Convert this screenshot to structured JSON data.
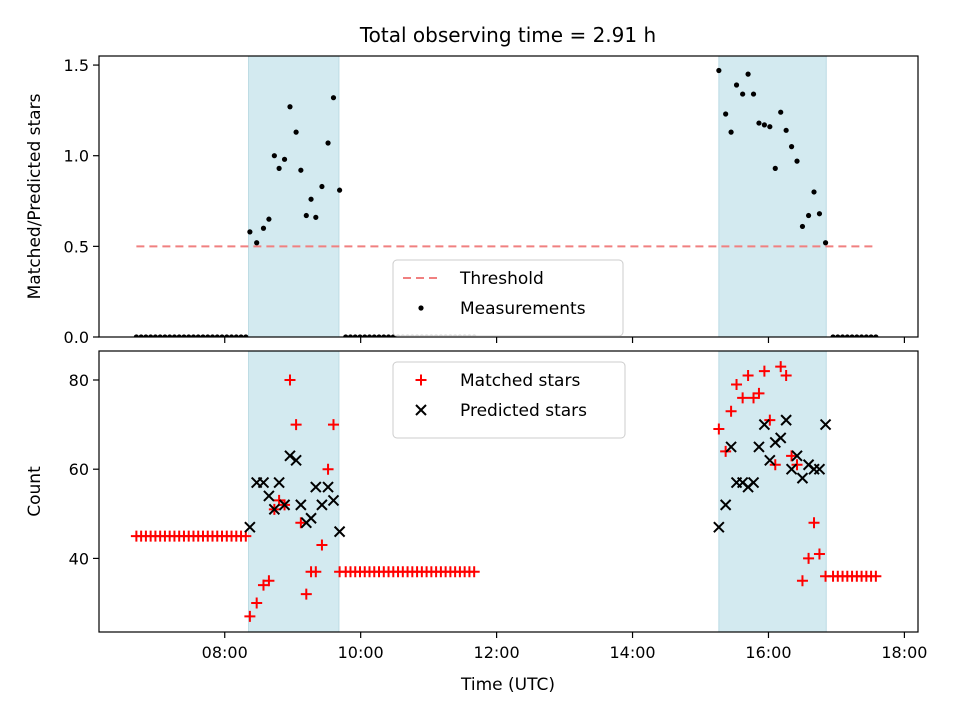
{
  "chart_data": {
    "title": "Total observing time = 2.91 h",
    "xlabel": "Time (UTC)",
    "x_unit": "hours UTC",
    "xlim": [
      6.15,
      18.2
    ],
    "xticks": [
      {
        "value": 8,
        "label": "08:00"
      },
      {
        "value": 10,
        "label": "10:00"
      },
      {
        "value": 12,
        "label": "12:00"
      },
      {
        "value": 14,
        "label": "14:00"
      },
      {
        "value": 16,
        "label": "16:00"
      },
      {
        "value": 18,
        "label": "18:00"
      }
    ],
    "shaded_intervals": [
      [
        8.35,
        9.68
      ],
      [
        15.27,
        16.85
      ]
    ],
    "shade_color": "#d3eaf0",
    "panels": [
      {
        "type": "scatter",
        "ylabel": "Matched/Predicted stars",
        "ylim": [
          0,
          1.55
        ],
        "yticks": [
          {
            "value": 0,
            "label": "0.0"
          },
          {
            "value": 0.5,
            "label": "0.5"
          },
          {
            "value": 1.0,
            "label": "1.0"
          },
          {
            "value": 1.5,
            "label": "1.5"
          }
        ],
        "legend": {
          "placement": "lower-center"
        },
        "threshold": {
          "name": "Threshold",
          "y": 0.5,
          "x_range": [
            6.7,
            17.6
          ],
          "color": "#f08080"
        },
        "series": [
          {
            "name": "Measurements",
            "marker": "dot",
            "color": "#000000",
            "points": [
              [
                6.7,
                0
              ],
              [
                6.77,
                0
              ],
              [
                6.84,
                0
              ],
              [
                6.91,
                0
              ],
              [
                6.98,
                0
              ],
              [
                7.05,
                0
              ],
              [
                7.12,
                0
              ],
              [
                7.19,
                0
              ],
              [
                7.26,
                0
              ],
              [
                7.33,
                0
              ],
              [
                7.4,
                0
              ],
              [
                7.47,
                0
              ],
              [
                7.54,
                0
              ],
              [
                7.61,
                0
              ],
              [
                7.68,
                0
              ],
              [
                7.75,
                0
              ],
              [
                7.82,
                0
              ],
              [
                7.89,
                0
              ],
              [
                7.96,
                0
              ],
              [
                8.03,
                0
              ],
              [
                8.1,
                0
              ],
              [
                8.17,
                0
              ],
              [
                8.24,
                0
              ],
              [
                8.31,
                0
              ],
              [
                8.37,
                0.58
              ],
              [
                8.47,
                0.52
              ],
              [
                8.57,
                0.6
              ],
              [
                8.65,
                0.65
              ],
              [
                8.73,
                1.0
              ],
              [
                8.8,
                0.93
              ],
              [
                8.88,
                0.98
              ],
              [
                8.96,
                1.27
              ],
              [
                9.05,
                1.13
              ],
              [
                9.12,
                0.92
              ],
              [
                9.2,
                0.67
              ],
              [
                9.27,
                0.76
              ],
              [
                9.34,
                0.66
              ],
              [
                9.43,
                0.83
              ],
              [
                9.52,
                1.07
              ],
              [
                9.6,
                1.32
              ],
              [
                9.69,
                0.81
              ],
              [
                9.78,
                0
              ],
              [
                9.85,
                0
              ],
              [
                9.92,
                0
              ],
              [
                9.99,
                0
              ],
              [
                10.06,
                0
              ],
              [
                10.13,
                0
              ],
              [
                10.2,
                0
              ],
              [
                10.27,
                0
              ],
              [
                10.34,
                0
              ],
              [
                10.41,
                0
              ],
              [
                10.48,
                0
              ],
              [
                10.55,
                0
              ],
              [
                10.62,
                0
              ],
              [
                10.69,
                0
              ],
              [
                10.76,
                0
              ],
              [
                10.83,
                0
              ],
              [
                10.9,
                0
              ],
              [
                10.97,
                0
              ],
              [
                11.04,
                0
              ],
              [
                11.11,
                0
              ],
              [
                11.18,
                0
              ],
              [
                11.25,
                0
              ],
              [
                11.32,
                0
              ],
              [
                11.39,
                0
              ],
              [
                11.46,
                0
              ],
              [
                11.53,
                0
              ],
              [
                11.6,
                0
              ],
              [
                11.67,
                0
              ],
              [
                15.27,
                1.47
              ],
              [
                15.37,
                1.23
              ],
              [
                15.45,
                1.13
              ],
              [
                15.53,
                1.39
              ],
              [
                15.62,
                1.34
              ],
              [
                15.7,
                1.45
              ],
              [
                15.78,
                1.34
              ],
              [
                15.86,
                1.18
              ],
              [
                15.94,
                1.17
              ],
              [
                16.02,
                1.16
              ],
              [
                16.1,
                0.93
              ],
              [
                16.18,
                1.24
              ],
              [
                16.26,
                1.14
              ],
              [
                16.34,
                1.05
              ],
              [
                16.42,
                0.97
              ],
              [
                16.5,
                0.61
              ],
              [
                16.59,
                0.67
              ],
              [
                16.67,
                0.8
              ],
              [
                16.75,
                0.68
              ],
              [
                16.84,
                0.52
              ],
              [
                16.95,
                0
              ],
              [
                17.02,
                0
              ],
              [
                17.09,
                0
              ],
              [
                17.16,
                0
              ],
              [
                17.23,
                0
              ],
              [
                17.3,
                0
              ],
              [
                17.37,
                0
              ],
              [
                17.44,
                0
              ],
              [
                17.51,
                0
              ],
              [
                17.58,
                0
              ]
            ]
          }
        ]
      },
      {
        "type": "scatter",
        "ylabel": "Count",
        "ylim": [
          23.5,
          86.5
        ],
        "yticks": [
          {
            "value": 40,
            "label": "40"
          },
          {
            "value": 60,
            "label": "60"
          },
          {
            "value": 80,
            "label": "80"
          }
        ],
        "legend": {
          "placement": "upper-center"
        },
        "series": [
          {
            "name": "Matched stars",
            "marker": "plus",
            "color": "#ff0000",
            "points": [
              [
                6.7,
                45
              ],
              [
                6.77,
                45
              ],
              [
                6.84,
                45
              ],
              [
                6.91,
                45
              ],
              [
                6.98,
                45
              ],
              [
                7.05,
                45
              ],
              [
                7.12,
                45
              ],
              [
                7.19,
                45
              ],
              [
                7.26,
                45
              ],
              [
                7.33,
                45
              ],
              [
                7.4,
                45
              ],
              [
                7.47,
                45
              ],
              [
                7.54,
                45
              ],
              [
                7.61,
                45
              ],
              [
                7.68,
                45
              ],
              [
                7.75,
                45
              ],
              [
                7.82,
                45
              ],
              [
                7.89,
                45
              ],
              [
                7.96,
                45
              ],
              [
                8.03,
                45
              ],
              [
                8.1,
                45
              ],
              [
                8.17,
                45
              ],
              [
                8.24,
                45
              ],
              [
                8.31,
                45
              ],
              [
                8.37,
                27
              ],
              [
                8.47,
                30
              ],
              [
                8.57,
                34
              ],
              [
                8.65,
                35
              ],
              [
                8.73,
                51
              ],
              [
                8.8,
                53
              ],
              [
                8.88,
                52
              ],
              [
                8.96,
                80
              ],
              [
                9.05,
                70
              ],
              [
                9.12,
                48
              ],
              [
                9.2,
                32
              ],
              [
                9.27,
                37
              ],
              [
                9.34,
                37
              ],
              [
                9.43,
                43
              ],
              [
                9.52,
                60
              ],
              [
                9.6,
                70
              ],
              [
                9.69,
                37
              ],
              [
                9.78,
                37
              ],
              [
                9.85,
                37
              ],
              [
                9.92,
                37
              ],
              [
                9.99,
                37
              ],
              [
                10.06,
                37
              ],
              [
                10.13,
                37
              ],
              [
                10.2,
                37
              ],
              [
                10.27,
                37
              ],
              [
                10.34,
                37
              ],
              [
                10.41,
                37
              ],
              [
                10.48,
                37
              ],
              [
                10.55,
                37
              ],
              [
                10.62,
                37
              ],
              [
                10.69,
                37
              ],
              [
                10.76,
                37
              ],
              [
                10.83,
                37
              ],
              [
                10.9,
                37
              ],
              [
                10.97,
                37
              ],
              [
                11.04,
                37
              ],
              [
                11.11,
                37
              ],
              [
                11.18,
                37
              ],
              [
                11.25,
                37
              ],
              [
                11.32,
                37
              ],
              [
                11.39,
                37
              ],
              [
                11.46,
                37
              ],
              [
                11.53,
                37
              ],
              [
                11.6,
                37
              ],
              [
                11.67,
                37
              ],
              [
                15.27,
                69
              ],
              [
                15.37,
                64
              ],
              [
                15.45,
                73
              ],
              [
                15.53,
                79
              ],
              [
                15.62,
                76
              ],
              [
                15.7,
                81
              ],
              [
                15.78,
                76
              ],
              [
                15.86,
                77
              ],
              [
                15.94,
                82
              ],
              [
                16.02,
                71
              ],
              [
                16.1,
                61
              ],
              [
                16.18,
                83
              ],
              [
                16.26,
                81
              ],
              [
                16.34,
                63
              ],
              [
                16.42,
                61
              ],
              [
                16.5,
                35
              ],
              [
                16.59,
                40
              ],
              [
                16.67,
                48
              ],
              [
                16.75,
                41
              ],
              [
                16.84,
                36
              ],
              [
                16.95,
                36
              ],
              [
                17.02,
                36
              ],
              [
                17.09,
                36
              ],
              [
                17.16,
                36
              ],
              [
                17.23,
                36
              ],
              [
                17.3,
                36
              ],
              [
                17.37,
                36
              ],
              [
                17.44,
                36
              ],
              [
                17.51,
                36
              ],
              [
                17.58,
                36
              ]
            ]
          },
          {
            "name": "Predicted stars",
            "marker": "x",
            "color": "#000000",
            "points": [
              [
                8.37,
                47
              ],
              [
                8.47,
                57
              ],
              [
                8.57,
                57
              ],
              [
                8.65,
                54
              ],
              [
                8.73,
                51
              ],
              [
                8.8,
                57
              ],
              [
                8.88,
                52
              ],
              [
                8.96,
                63
              ],
              [
                9.05,
                62
              ],
              [
                9.12,
                52
              ],
              [
                9.2,
                48
              ],
              [
                9.27,
                49
              ],
              [
                9.34,
                56
              ],
              [
                9.43,
                52
              ],
              [
                9.52,
                56
              ],
              [
                9.6,
                53
              ],
              [
                9.69,
                46
              ],
              [
                15.27,
                47
              ],
              [
                15.37,
                52
              ],
              [
                15.45,
                65
              ],
              [
                15.53,
                57
              ],
              [
                15.62,
                57
              ],
              [
                15.7,
                56
              ],
              [
                15.78,
                57
              ],
              [
                15.86,
                65
              ],
              [
                15.94,
                70
              ],
              [
                16.02,
                62
              ],
              [
                16.1,
                66
              ],
              [
                16.18,
                67
              ],
              [
                16.26,
                71
              ],
              [
                16.34,
                60
              ],
              [
                16.42,
                63
              ],
              [
                16.5,
                58
              ],
              [
                16.59,
                61
              ],
              [
                16.67,
                60
              ],
              [
                16.75,
                60
              ],
              [
                16.84,
                70
              ]
            ]
          }
        ]
      }
    ]
  }
}
